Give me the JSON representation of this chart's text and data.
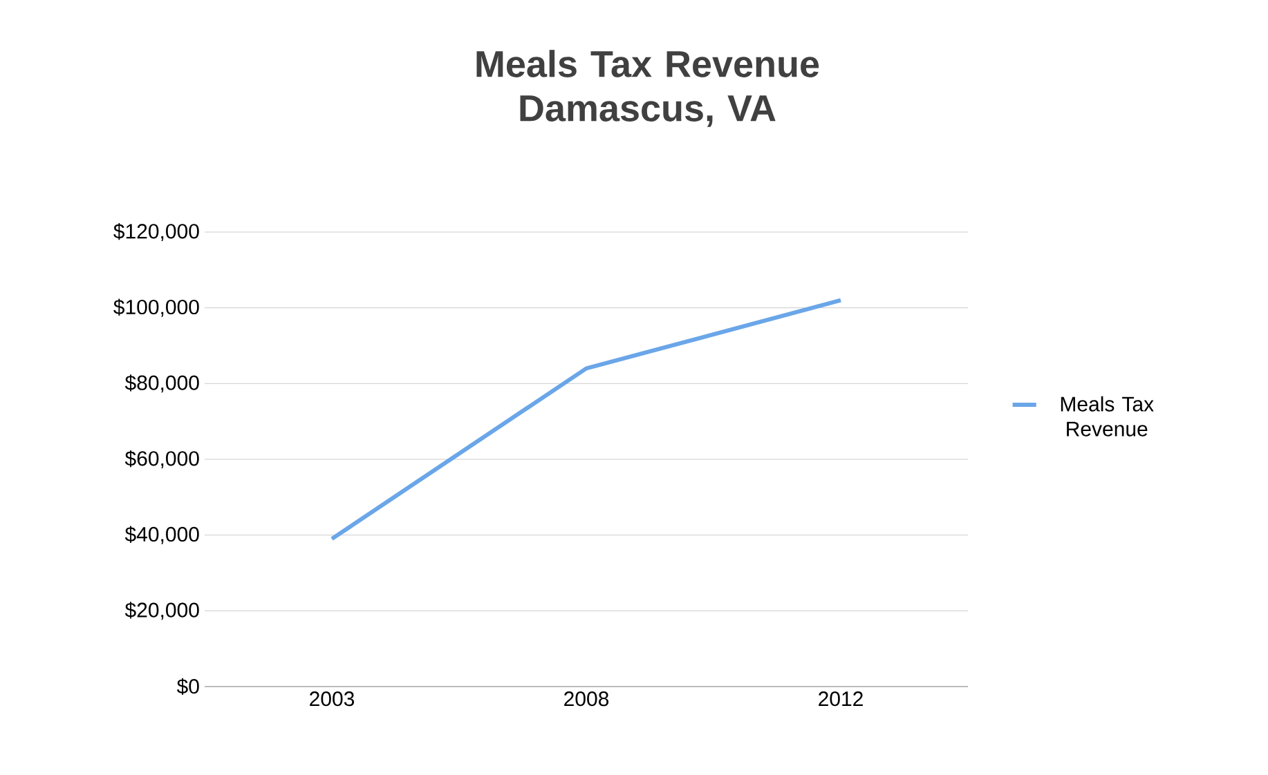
{
  "chart_data": {
    "type": "line",
    "title": "Meals Tax Revenue Damascus, VA",
    "categories": [
      "2003",
      "2008",
      "2012"
    ],
    "series": [
      {
        "name": "Meals Tax Revenue",
        "color": "#6aa6e8",
        "values": [
          39000,
          84000,
          102000
        ]
      }
    ],
    "ylim": [
      0,
      120000
    ],
    "yticks": [
      {
        "value": 0,
        "label": "$0"
      },
      {
        "value": 20000,
        "label": "$20,000"
      },
      {
        "value": 40000,
        "label": "$40,000"
      },
      {
        "value": 60000,
        "label": "$60,000"
      },
      {
        "value": 80000,
        "label": "$80,000"
      },
      {
        "value": 100000,
        "label": "$100,000"
      },
      {
        "value": 120000,
        "label": "$120,000"
      }
    ],
    "grid": "y",
    "legend": "right",
    "marker": "none",
    "line_style": "solid"
  }
}
